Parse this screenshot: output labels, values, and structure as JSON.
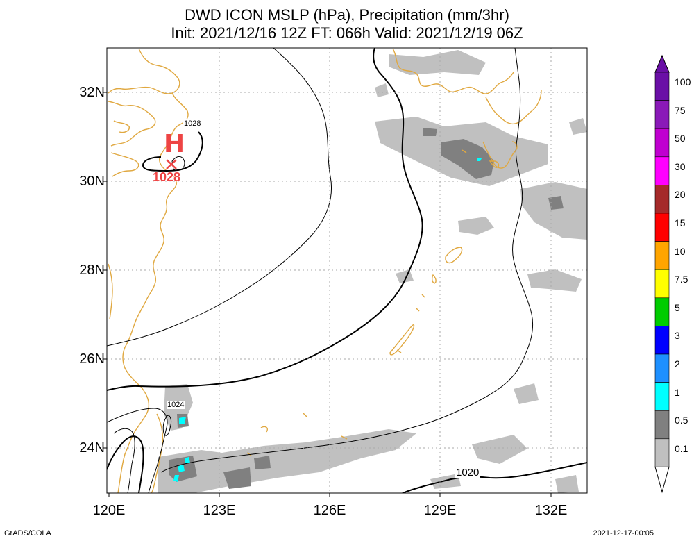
{
  "title": {
    "line1": "DWD ICON MSLP (hPa), Precipitation (mm/3hr)",
    "line2": "Init: 2021/12/16 12Z  FT: 066h  Valid: 2021/12/19 06Z"
  },
  "axes": {
    "lat_labels": [
      "32N",
      "30N",
      "28N",
      "26N",
      "24N"
    ],
    "lon_labels": [
      "120E",
      "123E",
      "126E",
      "129E",
      "132E"
    ]
  },
  "colorbar": {
    "labels": [
      "100",
      "75",
      "50",
      "30",
      "20",
      "15",
      "10",
      "7.5",
      "5",
      "3",
      "2",
      "1",
      "0.5",
      "0.1"
    ],
    "colors": [
      "#6a0fa6",
      "#8a19b8",
      "#c000d0",
      "#ff00ff",
      "#a52a2a",
      "#ff0000",
      "#ffa500",
      "#ffff00",
      "#00cc00",
      "#0000ff",
      "#1e90ff",
      "#00ffff",
      "#808080",
      "#c0c0c0"
    ]
  },
  "isobars": {
    "label_1028": "1028",
    "label_1024": "1024",
    "label_1020": "1020"
  },
  "high": {
    "letter": "H",
    "value": "1028"
  },
  "footer": {
    "left": "GrADS/COLA",
    "right": "2021-12-17-00:05"
  }
}
